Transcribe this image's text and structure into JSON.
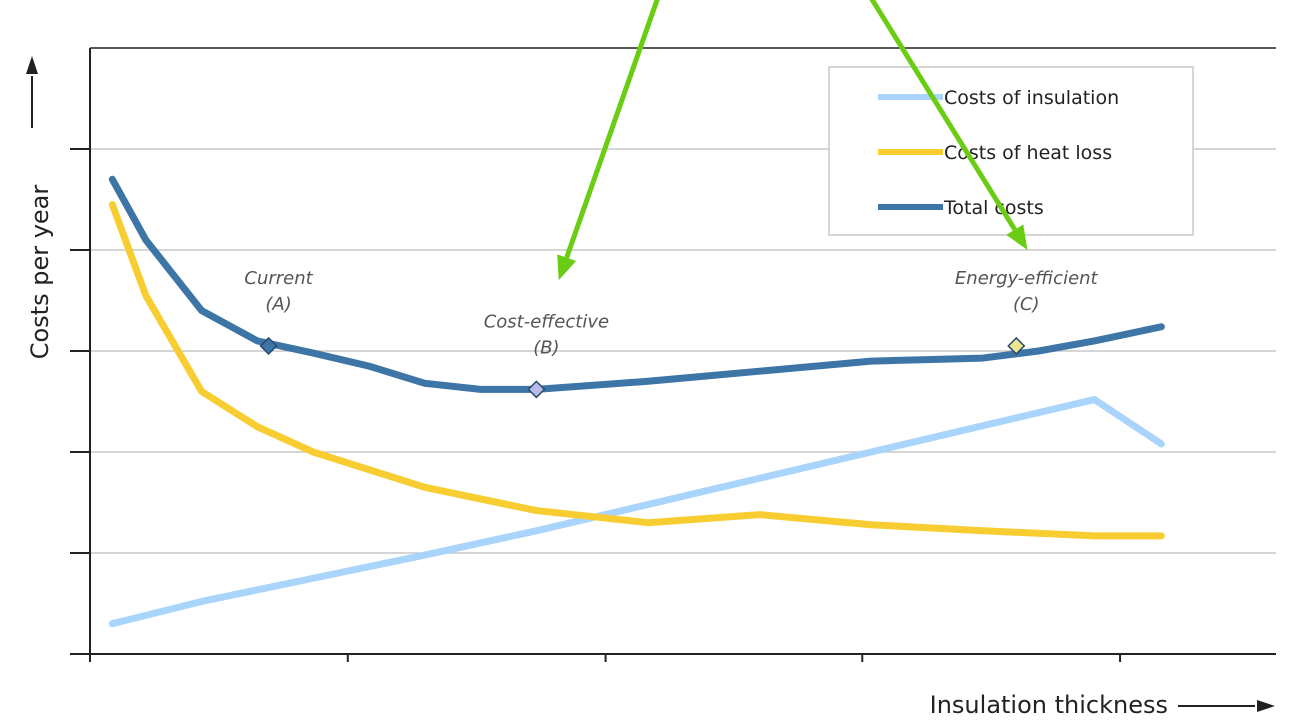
{
  "chart_data": {
    "type": "line",
    "xlabel": "Insulation thickness",
    "ylabel": "Costs per year",
    "xlim": [
      0,
      10
    ],
    "ylim": [
      0,
      6
    ],
    "grid": true,
    "legend_position": "top-right",
    "series": [
      {
        "name": "Costs of insulation",
        "color": "#a9d4fb",
        "x": [
          0.2,
          1.0,
          2.0,
          3.0,
          4.0,
          5.0,
          6.0,
          7.0,
          8.0,
          9.0,
          9.6
        ],
        "y": [
          0.3,
          0.52,
          0.75,
          0.98,
          1.22,
          1.48,
          1.74,
          2.0,
          2.26,
          2.52,
          2.08
        ]
      },
      {
        "name": "Costs of heat loss",
        "color": "#f8cd31",
        "x": [
          0.2,
          0.5,
          1.0,
          1.5,
          2.0,
          3.0,
          4.0,
          5.0,
          6.0,
          7.0,
          8.0,
          9.0,
          9.6
        ],
        "y": [
          4.45,
          3.55,
          2.6,
          2.25,
          2.0,
          1.65,
          1.42,
          1.3,
          1.38,
          1.28,
          1.22,
          1.17,
          1.17
        ]
      },
      {
        "name": "Total costs",
        "color": "#3d75a6",
        "x": [
          0.2,
          0.5,
          1.0,
          1.5,
          2.0,
          2.5,
          3.0,
          3.5,
          4.0,
          5.0,
          6.0,
          7.0,
          8.0,
          8.5,
          9.0,
          9.6
        ],
        "y": [
          4.7,
          4.1,
          3.4,
          3.1,
          2.98,
          2.85,
          2.68,
          2.62,
          2.62,
          2.7,
          2.8,
          2.9,
          2.93,
          3.0,
          3.1,
          3.24
        ]
      }
    ],
    "annotations": [
      {
        "line1": "Current",
        "line2": "(A)",
        "x": 1.6,
        "y": 3.05,
        "color": "#3d75a6"
      },
      {
        "line1": "Cost-effective",
        "line2": "(B)",
        "x": 4.0,
        "y": 2.62,
        "color": "#b9b9ea"
      },
      {
        "line1": "Energy-efficient",
        "line2": "(C)",
        "x": 8.3,
        "y": 3.05,
        "color": "#eee58f"
      }
    ],
    "arrows": [
      {
        "from_x": 5.2,
        "from_y": 6.85,
        "to_x": 4.2,
        "to_y": 3.7
      },
      {
        "from_x": 6.8,
        "from_y": 6.85,
        "to_x": 8.4,
        "to_y": 4.0
      }
    ]
  },
  "colors": {
    "axis": "#222222",
    "grid": "#c8c8c8",
    "arrow": "#6acd13",
    "legend_border": "#c8c8c8"
  }
}
